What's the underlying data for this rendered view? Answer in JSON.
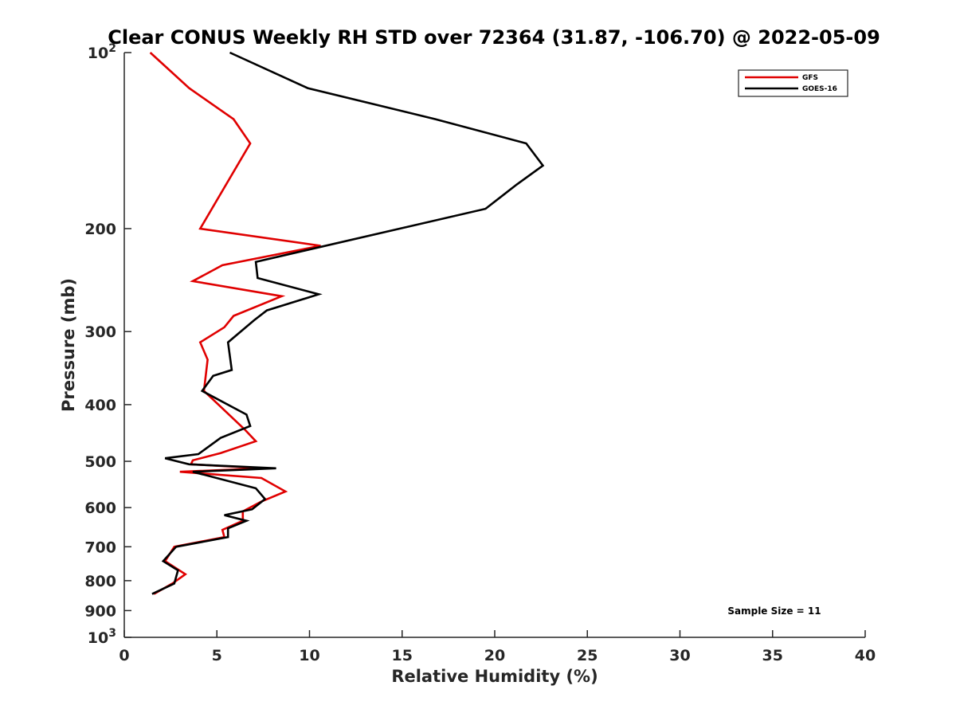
{
  "chart_data": {
    "type": "line",
    "title": "Clear CONUS Weekly RH STD over 72364 (31.87, -106.70) @ 2022-05-09",
    "xlabel": "Relative Humidity (%)",
    "ylabel": "Pressure (mb)",
    "xlim": [
      0,
      40
    ],
    "ylim": [
      100,
      1000
    ],
    "y_scale": "log",
    "y_reversed": true,
    "x_ticks": [
      "0",
      "5",
      "10",
      "15",
      "20",
      "25",
      "30",
      "35",
      "40"
    ],
    "y_ticks": [
      {
        "value": 100,
        "label": "10",
        "sup": "2"
      },
      {
        "value": 200,
        "label": "200",
        "sup": ""
      },
      {
        "value": 300,
        "label": "300",
        "sup": ""
      },
      {
        "value": 400,
        "label": "400",
        "sup": ""
      },
      {
        "value": 500,
        "label": "500",
        "sup": ""
      },
      {
        "value": 600,
        "label": "600",
        "sup": ""
      },
      {
        "value": 700,
        "label": "700",
        "sup": ""
      },
      {
        "value": 800,
        "label": "800",
        "sup": ""
      },
      {
        "value": 900,
        "label": "900",
        "sup": ""
      },
      {
        "value": 1000,
        "label": "10",
        "sup": "3"
      }
    ],
    "grid": false,
    "legend_position": "top-right",
    "annotation": "Sample Size = 11",
    "series": [
      {
        "name": "GFS",
        "color": "#e00000",
        "x": [
          1.4,
          3.5,
          5.9,
          6.8,
          4.1,
          10.6,
          5.3,
          3.7,
          8.5,
          5.9,
          5.4,
          4.1,
          4.5,
          4.3,
          6.5,
          7.1,
          5.2,
          3.7,
          3.6,
          7.5,
          3.0,
          7.4,
          8.7,
          7.4,
          6.4,
          6.4,
          5.3,
          5.4,
          2.7,
          2.2,
          3.3,
          2.6,
          1.6
        ],
        "y": [
          100,
          115,
          130,
          143,
          200,
          214,
          231,
          246,
          261,
          282,
          295,
          313,
          335,
          379,
          441,
          462,
          484,
          498,
          506,
          514,
          521,
          534,
          563,
          586,
          609,
          632,
          655,
          674,
          700,
          741,
          780,
          809,
          843
        ]
      },
      {
        "name": "GOES-16",
        "color": "#000000",
        "x": [
          5.7,
          9.9,
          16.8,
          21.7,
          22.6,
          21.2,
          19.5,
          7.1,
          7.2,
          10.5,
          7.7,
          7.0,
          5.6,
          5.8,
          4.8,
          4.2,
          6.6,
          6.8,
          5.2,
          4.0,
          2.2,
          3.5,
          8.2,
          3.7,
          7.1,
          7.6,
          6.9,
          5.4,
          6.6,
          5.6,
          5.6,
          2.8,
          2.1,
          2.9,
          2.7,
          1.5
        ],
        "y": [
          100,
          115,
          130,
          143,
          156,
          168,
          185,
          228,
          243,
          259,
          276,
          287,
          313,
          349,
          357,
          379,
          416,
          435,
          456,
          486,
          494,
          506,
          514,
          521,
          556,
          580,
          604,
          618,
          632,
          651,
          674,
          700,
          741,
          768,
          809,
          843
        ]
      }
    ]
  }
}
